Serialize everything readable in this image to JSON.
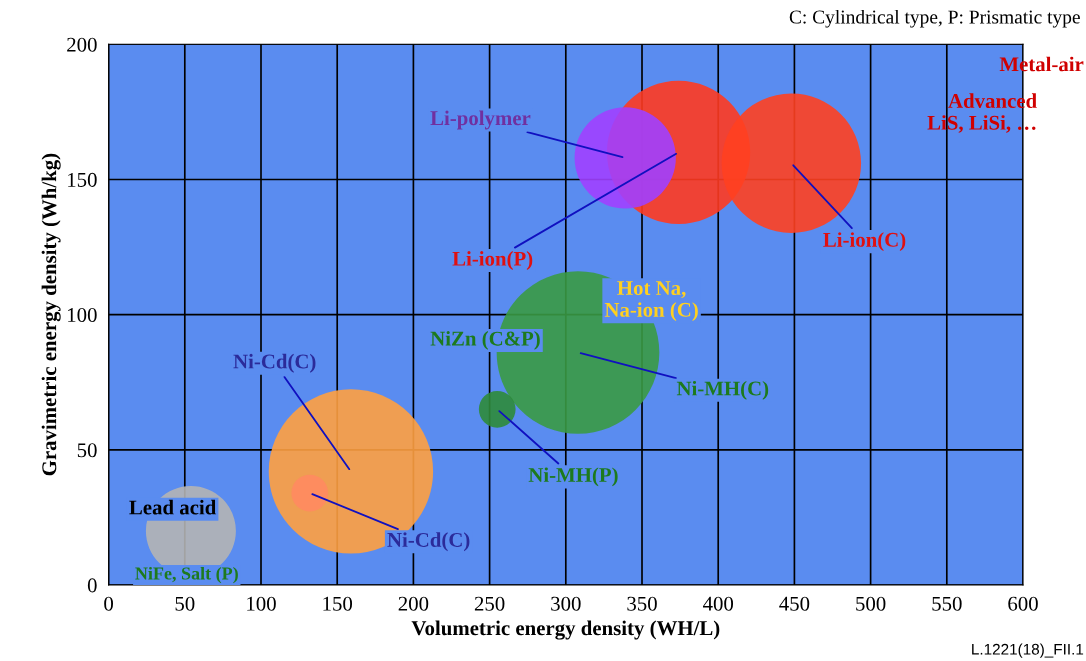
{
  "chart_data": {
    "type": "bubble",
    "xlabel": "Volumetric energy density (WH/L)",
    "ylabel": "Gravimetric energy density (Wh/kg)",
    "xlim": [
      0,
      600
    ],
    "ylim": [
      0,
      200
    ],
    "xticks": [
      0,
      50,
      100,
      150,
      200,
      250,
      300,
      350,
      400,
      450,
      500,
      550,
      600
    ],
    "yticks": [
      0,
      50,
      100,
      150,
      200
    ],
    "grid": true,
    "legend": false,
    "series": [
      {
        "name": "Lead acid",
        "color": "#b4b4b4",
        "x": [
          54
        ],
        "values": [
          20
        ],
        "sizes": [
          0.3
        ]
      },
      {
        "name": "Ni-Cd(C)",
        "color": "#ffa040",
        "x": [
          159
        ],
        "values": [
          42
        ],
        "sizes": [
          1
        ]
      },
      {
        "name": "Ni-Cd(C)",
        "color": "#ff8a60",
        "x": [
          132
        ],
        "values": [
          34
        ],
        "sizes": [
          0.05
        ]
      },
      {
        "name": "Ni-MH(P)",
        "color": "#2e8b3a",
        "x": [
          255
        ],
        "values": [
          65
        ],
        "sizes": [
          0.05
        ]
      },
      {
        "name": "Ni-MH(C)",
        "color": "#3a9a44",
        "x": [
          308
        ],
        "values": [
          86
        ],
        "sizes": [
          0.98
        ]
      },
      {
        "name": "Li-ion(P)",
        "color": "#ff3a20",
        "x": [
          374
        ],
        "values": [
          160
        ],
        "sizes": [
          0.76
        ]
      },
      {
        "name": "Li-ion(C)",
        "color": "#ff4020",
        "x": [
          448
        ],
        "values": [
          156
        ],
        "sizes": [
          0.72
        ]
      },
      {
        "name": "Li-polymer",
        "color": "#a040ff",
        "x": [
          339
        ],
        "values": [
          158
        ],
        "sizes": [
          0.38
        ]
      }
    ],
    "annotations": [
      "C: Cylindrical type, P: Prismatic type",
      "Hot Na,\nNa-ion (C)",
      "NiZn (C&P)",
      "NiFe, Salt (P)",
      "Metal-air",
      "Advanced\nLiS, LiSi, …",
      "L.1221(18)_FII.1"
    ]
  }
}
